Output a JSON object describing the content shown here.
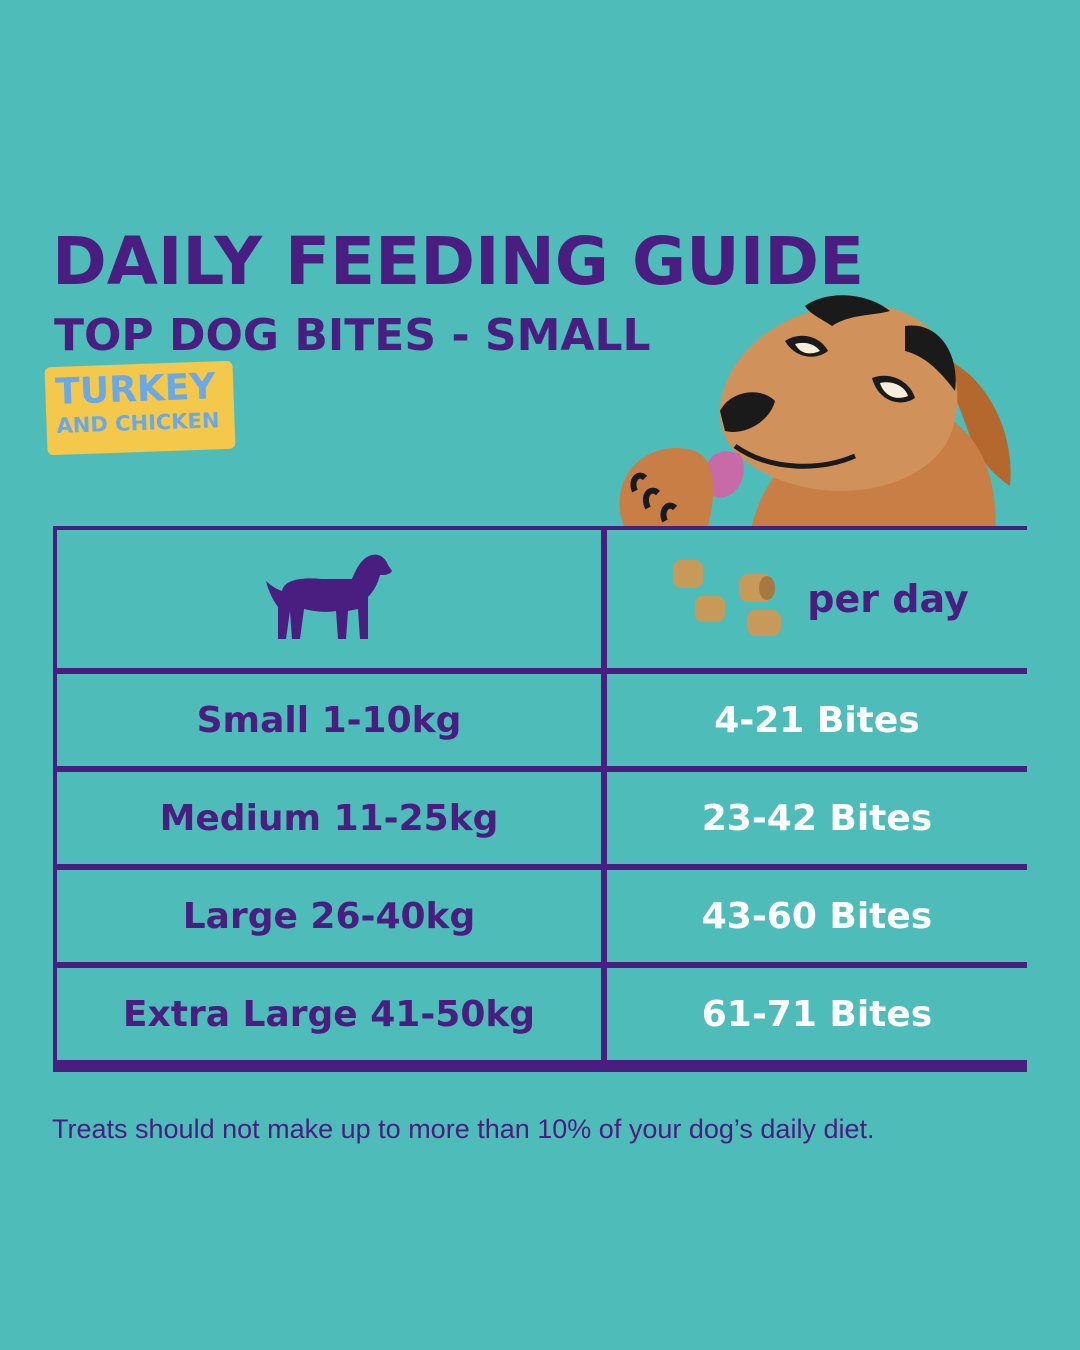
{
  "header": {
    "title": "DAILY FEEDING GUIDE",
    "subtitle": "TOP DOG BITES - SMALL",
    "flavour_line1": "TURKEY",
    "flavour_line2": "AND CHICKEN"
  },
  "table": {
    "header_icon_left": "dog-silhouette-icon",
    "header_icon_right": "treat-bites-icon",
    "header_right_label": "per day",
    "rows": [
      {
        "size": "Small 1-10kg",
        "amount": "4-21 Bites"
      },
      {
        "size": "Medium 11-25kg",
        "amount": "23-42 Bites"
      },
      {
        "size": "Large 26-40kg",
        "amount": "43-60 Bites"
      },
      {
        "size": "Extra Large 41-50kg",
        "amount": "61-71 Bites"
      }
    ]
  },
  "footnote": "Treats should not make up to more than 10% of your dog’s daily diet.",
  "colors": {
    "background": "#4ebdba",
    "primary": "#4a1d80",
    "badge": "#f4c84a",
    "badge_text": "#6aa8e6",
    "amount_text": "#ffffff"
  }
}
